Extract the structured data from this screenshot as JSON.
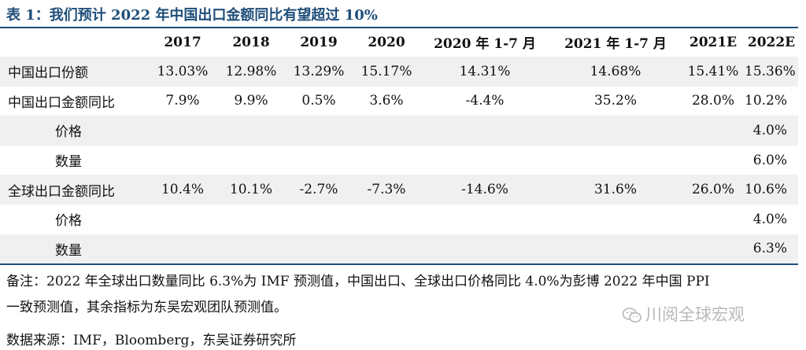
{
  "title": "表 1：我们预计 2022 年中国出口金额同比有望超过 10%",
  "table": {
    "headers": [
      "",
      "2017",
      "2018",
      "2019",
      "2020",
      "2020 年 1-7 月",
      "2021 年 1-7 月",
      "2021E",
      "2022E"
    ],
    "rows": [
      {
        "label": "中国出口份额",
        "values": [
          "13.03%",
          "12.98%",
          "13.29%",
          "15.17%",
          "14.31%",
          "14.68%",
          "15.41%",
          "15.36%"
        ]
      },
      {
        "label": "中国出口金额同比",
        "values": [
          "7.9%",
          "9.9%",
          "0.5%",
          "3.6%",
          "-4.4%",
          "35.2%",
          "28.0%",
          "10.2%"
        ]
      },
      {
        "label": "价格",
        "values": [
          "",
          "",
          "",
          "",
          "",
          "",
          "",
          "4.0%"
        ]
      },
      {
        "label": "数量",
        "values": [
          "",
          "",
          "",
          "",
          "",
          "",
          "",
          "6.0%"
        ]
      },
      {
        "label": "全球出口金额同比",
        "values": [
          "10.4%",
          "10.1%",
          "-2.7%",
          "-7.3%",
          "-14.6%",
          "31.6%",
          "26.0%",
          "10.6%"
        ]
      },
      {
        "label": "价格",
        "values": [
          "",
          "",
          "",
          "",
          "",
          "",
          "",
          "4.0%"
        ]
      },
      {
        "label": "数量",
        "values": [
          "",
          "",
          "",
          "",
          "",
          "",
          "",
          "6.3%"
        ]
      }
    ]
  },
  "notes": {
    "line1": "备注：2022 年全球出口数量同比 6.3%为 IMF 预测值，中国出口、全球出口价格同比 4.0%为彭博 2022 年中国 PPI",
    "line2": "一致预测值，其余指标为东吴宏观团队预测值。",
    "source": "数据来源：IMF，Bloomberg，东吴证券研究所"
  },
  "watermark": {
    "text": "川阅全球宏观",
    "icon": "wechat-icon",
    "color": "#b8b8b8"
  },
  "colors": {
    "accent": "#1f4e79",
    "row_shade": "#f0f0f0"
  }
}
